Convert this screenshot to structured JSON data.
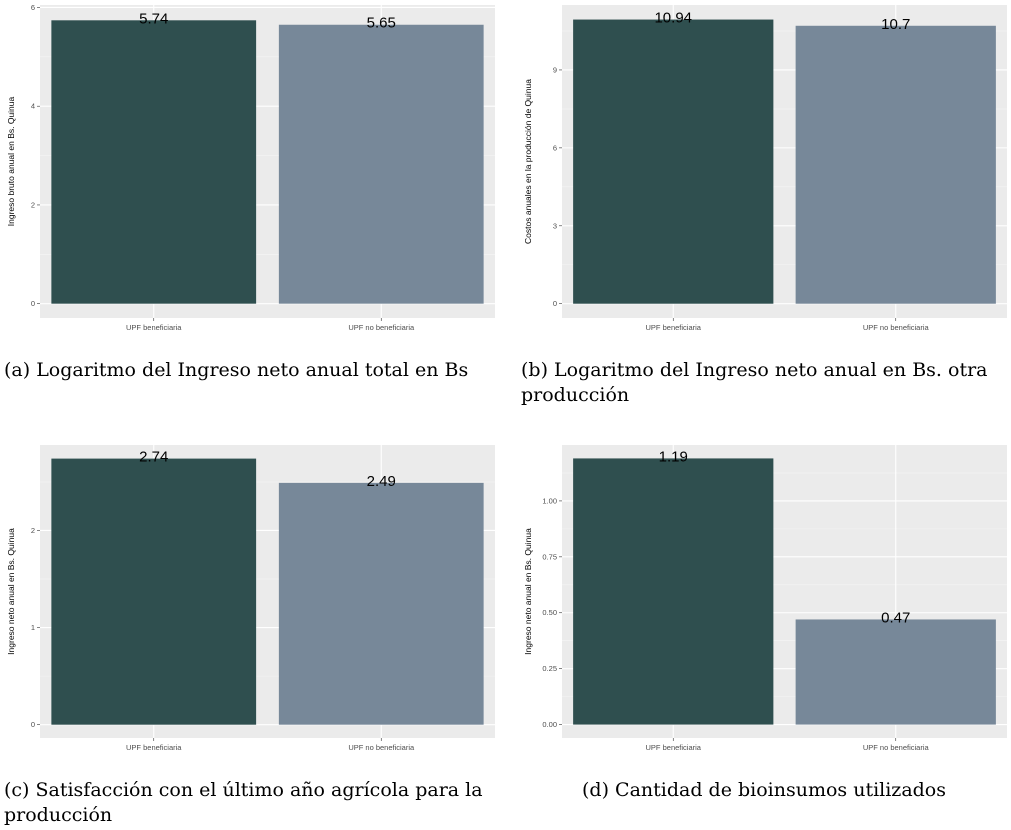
{
  "chart_data": [
    {
      "type": "bar",
      "categories": [
        "UPF beneficiaria",
        "UPF no beneficiaria"
      ],
      "values": [
        5.74,
        5.65
      ],
      "data_labels": [
        "5.74",
        "5.65"
      ],
      "colors": [
        "#2f4f4f",
        "#778899"
      ],
      "ylabel": "Ingreso bruto anual en Bs. Quinua",
      "yticks": [
        0,
        2,
        4,
        6
      ],
      "ytick_labels": [
        "0",
        "2",
        "4",
        "6"
      ],
      "ylim": [
        -0.29,
        6.05
      ],
      "grid": true,
      "caption": "(a) Logaritmo del Ingreso neto anual total en Bs"
    },
    {
      "type": "bar",
      "categories": [
        "UPF beneficiaria",
        "UPF no beneficiaria"
      ],
      "values": [
        10.94,
        10.7
      ],
      "data_labels": [
        "10.94",
        "10.7"
      ],
      "colors": [
        "#2f4f4f",
        "#778899"
      ],
      "ylabel": "Costos anuales en la producción de Quinua",
      "yticks": [
        0,
        3,
        6,
        9
      ],
      "ytick_labels": [
        "0",
        "3",
        "6",
        "9"
      ],
      "ylim": [
        -0.55,
        11.5
      ],
      "grid": true,
      "caption": "(b) Logaritmo del Ingreso neto anual en Bs. otra producción"
    },
    {
      "type": "bar",
      "categories": [
        "UPF beneficiaria",
        "UPF no beneficiaria"
      ],
      "values": [
        2.74,
        2.49
      ],
      "data_labels": [
        "2.74",
        "2.49"
      ],
      "colors": [
        "#2f4f4f",
        "#778899"
      ],
      "ylabel": "Ingreso neto anual en Bs. Quinua",
      "yticks": [
        0,
        1,
        2
      ],
      "ytick_labels": [
        "0",
        "1",
        "2"
      ],
      "ylim": [
        -0.137,
        2.88
      ],
      "grid": true,
      "caption": "(c) Satisfacción con el último año agrícola para la producción"
    },
    {
      "type": "bar",
      "categories": [
        "UPF beneficiaria",
        "UPF no beneficiaria"
      ],
      "values": [
        1.19,
        0.47
      ],
      "data_labels": [
        "1.19",
        "0.47"
      ],
      "colors": [
        "#2f4f4f",
        "#778899"
      ],
      "ylabel": "Ingreso neto anual en Bs. Quinua",
      "yticks": [
        0,
        0.25,
        0.5,
        0.75,
        1.0
      ],
      "ytick_labels": [
        "0.00",
        "0.25",
        "0.50",
        "0.75",
        "1.00"
      ],
      "ylim": [
        -0.06,
        1.25
      ],
      "grid": true,
      "caption": "(d) Cantidad de bioinsumos utilizados"
    }
  ]
}
